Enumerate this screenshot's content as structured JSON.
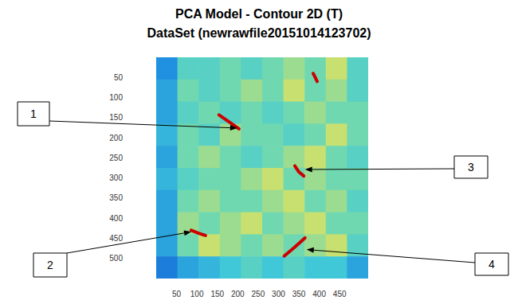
{
  "chart_data": {
    "type": "heatmap",
    "title": "PCA Model - Contour 2D (T)",
    "subtitle": "DataSet (newrawfile20151014123702)",
    "xlim": [
      0,
      520
    ],
    "ylim": [
      0,
      550
    ],
    "xticks": [
      50,
      100,
      150,
      200,
      250,
      300,
      350,
      400,
      450
    ],
    "yticks": [
      50,
      100,
      150,
      200,
      250,
      300,
      350,
      400,
      450,
      500
    ],
    "x_edges": [
      0,
      52,
      104,
      156,
      208,
      260,
      312,
      364,
      416,
      468,
      520
    ],
    "y_edges": [
      0,
      55,
      110,
      165,
      220,
      275,
      330,
      385,
      440,
      495,
      550
    ],
    "cells": [
      [
        0.25,
        0.45,
        0.45,
        0.5,
        0.45,
        0.5,
        0.55,
        0.5,
        0.6,
        0.45
      ],
      [
        0.3,
        0.5,
        0.45,
        0.5,
        0.55,
        0.5,
        0.6,
        0.5,
        0.55,
        0.45
      ],
      [
        0.3,
        0.45,
        0.5,
        0.45,
        0.5,
        0.45,
        0.5,
        0.55,
        0.5,
        0.5
      ],
      [
        0.35,
        0.5,
        0.45,
        0.55,
        0.5,
        0.5,
        0.45,
        0.5,
        0.6,
        0.5
      ],
      [
        0.3,
        0.5,
        0.55,
        0.5,
        0.45,
        0.5,
        0.55,
        0.6,
        0.5,
        0.45
      ],
      [
        0.35,
        0.45,
        0.5,
        0.5,
        0.55,
        0.6,
        0.5,
        0.55,
        0.5,
        0.5
      ],
      [
        0.3,
        0.5,
        0.55,
        0.5,
        0.5,
        0.55,
        0.6,
        0.5,
        0.55,
        0.45
      ],
      [
        0.3,
        0.55,
        0.5,
        0.55,
        0.6,
        0.5,
        0.55,
        0.6,
        0.5,
        0.5
      ],
      [
        0.3,
        0.5,
        0.6,
        0.55,
        0.5,
        0.55,
        0.5,
        0.55,
        0.6,
        0.45
      ],
      [
        0.2,
        0.3,
        0.35,
        0.4,
        0.45,
        0.4,
        0.45,
        0.4,
        0.4,
        0.3
      ]
    ],
    "color_range": [
      0,
      1
    ],
    "streaks": {
      "color": "#cc0000",
      "lines": [
        {
          "x": [
            154,
            185,
            203
          ],
          "y": [
            143,
            165,
            178
          ]
        },
        {
          "x": [
            86,
            103,
            121
          ],
          "y": [
            430,
            437,
            443
          ]
        },
        {
          "x": [
            340,
            350,
            362
          ],
          "y": [
            270,
            285,
            295
          ]
        },
        {
          "x": [
            314,
            340,
            365
          ],
          "y": [
            494,
            472,
            449
          ]
        },
        {
          "x": [
            385,
            395
          ],
          "y": [
            40,
            60
          ]
        }
      ]
    },
    "annotations": [
      {
        "label": "1",
        "x": 199,
        "y": 176
      },
      {
        "label": "2",
        "x": 86,
        "y": 434
      },
      {
        "label": "3",
        "x": 365,
        "y": 279
      },
      {
        "label": "4",
        "x": 369,
        "y": 478
      }
    ]
  }
}
